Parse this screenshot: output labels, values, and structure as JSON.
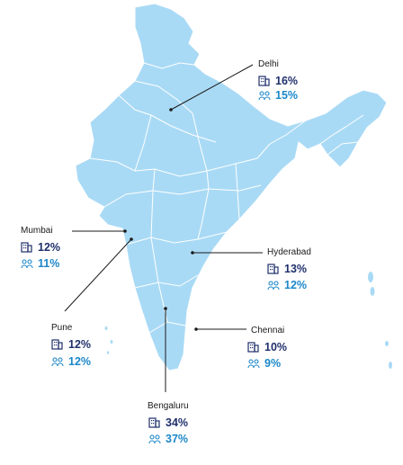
{
  "colors": {
    "map_fill": "#a9daf5",
    "map_border": "#ffffff",
    "leader_line": "#1a1a1a",
    "office_stat": "#1f2f6b",
    "people_stat": "#1b87c9"
  },
  "icons": {
    "office": "office-building-icon",
    "people": "people-group-icon"
  },
  "cities": [
    {
      "name": "Delhi",
      "office_pct": "16%",
      "people_pct": "15%"
    },
    {
      "name": "Mumbai",
      "office_pct": "12%",
      "people_pct": "11%"
    },
    {
      "name": "Hyderabad",
      "office_pct": "13%",
      "people_pct": "12%"
    },
    {
      "name": "Pune",
      "office_pct": "12%",
      "people_pct": "12%"
    },
    {
      "name": "Chennai",
      "office_pct": "10%",
      "people_pct": "9%"
    },
    {
      "name": "Bengaluru",
      "office_pct": "34%",
      "people_pct": "37%"
    }
  ]
}
